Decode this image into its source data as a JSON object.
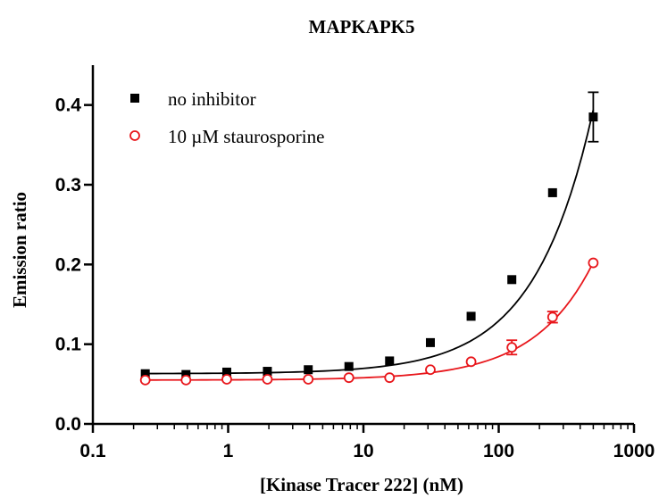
{
  "chart_data": {
    "type": "scatter",
    "title": "MAPKAPK5",
    "xlabel": "[Kinase Tracer 222] (nM)",
    "ylabel": "Emission ratio",
    "xscale": "log",
    "xlim": [
      0.1,
      1000
    ],
    "ylim": [
      0.0,
      0.45
    ],
    "x_ticks": [
      "0.1",
      "1",
      "10",
      "100",
      "1000"
    ],
    "y_ticks": [
      "0.0",
      "0.1",
      "0.2",
      "0.3",
      "0.4"
    ],
    "legend_position": "top-left",
    "grid": false,
    "series": [
      {
        "name": "no inhibitor",
        "marker": "filled-square",
        "color": "#000000",
        "x": [
          0.244,
          0.488,
          0.977,
          1.95,
          3.91,
          7.81,
          15.6,
          31.25,
          62.5,
          125,
          250,
          500
        ],
        "y": [
          0.063,
          0.062,
          0.065,
          0.066,
          0.068,
          0.072,
          0.079,
          0.102,
          0.135,
          0.181,
          0.29,
          0.385
        ],
        "error": [
          0,
          0,
          0,
          0,
          0,
          0,
          0,
          0,
          0,
          0,
          0,
          0.031
        ],
        "fit": {
          "baseline": 0.063,
          "slope": 0.000662
        }
      },
      {
        "name": "10 µM staurosporine",
        "marker": "open-circle",
        "color": "#e8161b",
        "x": [
          0.244,
          0.488,
          0.977,
          1.95,
          3.91,
          7.81,
          15.6,
          31.25,
          62.5,
          125,
          250,
          500
        ],
        "y": [
          0.055,
          0.055,
          0.056,
          0.056,
          0.056,
          0.058,
          0.058,
          0.068,
          0.078,
          0.096,
          0.134,
          0.202
        ],
        "error": [
          0,
          0,
          0,
          0,
          0,
          0,
          0,
          0,
          0,
          0.009,
          0.007,
          0
        ],
        "fit": {
          "baseline": 0.055,
          "slope": 0.000295
        }
      }
    ]
  }
}
